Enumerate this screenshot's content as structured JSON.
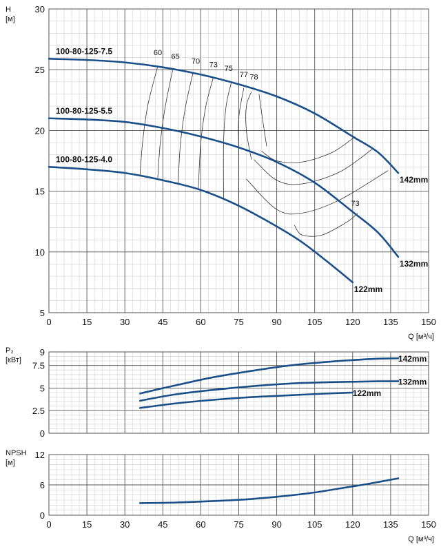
{
  "colors": {
    "curve": "#1b4f8a",
    "grid_major": "#555555",
    "grid_minor": "#d0d0d0",
    "iso": "#333333"
  },
  "chart_data": [
    {
      "id": "head",
      "type": "line",
      "xlabel": "Q [м³/ч]",
      "ylabel_line1": "H",
      "ylabel_line2": "[м]",
      "xlim": [
        0,
        150
      ],
      "ylim": [
        5,
        30
      ],
      "xticks": [
        "0",
        "15",
        "30",
        "45",
        "60",
        "75",
        "90",
        "105",
        "120",
        "135",
        "150"
      ],
      "yticks": [
        "5",
        "10",
        "15",
        "20",
        "25",
        "30"
      ],
      "x_tick_values": [
        0,
        15,
        30,
        45,
        60,
        75,
        90,
        105,
        120,
        135,
        150
      ],
      "y_tick_values": [
        5,
        10,
        15,
        20,
        25,
        30
      ],
      "grid": true,
      "series": [
        {
          "name": "100-80-125-7.5",
          "end_label": "142mm",
          "x": [
            0,
            15,
            30,
            45,
            60,
            75,
            90,
            105,
            120,
            130,
            138
          ],
          "y": [
            25.9,
            25.8,
            25.6,
            25.2,
            24.6,
            23.8,
            22.8,
            21.4,
            19.5,
            18.2,
            16.5
          ]
        },
        {
          "name": "100-80-125-5.5",
          "end_label": "132mm",
          "x": [
            0,
            15,
            30,
            45,
            60,
            75,
            90,
            105,
            120,
            130,
            138
          ],
          "y": [
            21.0,
            20.9,
            20.7,
            20.2,
            19.5,
            18.6,
            17.4,
            15.7,
            13.3,
            11.6,
            9.6
          ]
        },
        {
          "name": "100-80-125-4.0",
          "end_label": "122mm",
          "x": [
            0,
            15,
            30,
            45,
            60,
            75,
            90,
            100,
            110,
            120
          ],
          "y": [
            17.0,
            16.8,
            16.5,
            15.9,
            15.1,
            13.8,
            12.1,
            10.8,
            9.2,
            7.5
          ]
        }
      ],
      "efficiency_labels": [
        {
          "text": "60",
          "x": 43,
          "y": 26.2
        },
        {
          "text": "65",
          "x": 50,
          "y": 25.9
        },
        {
          "text": "70",
          "x": 58,
          "y": 25.5
        },
        {
          "text": "73",
          "x": 65,
          "y": 25.2
        },
        {
          "text": "75",
          "x": 71,
          "y": 24.9
        },
        {
          "text": "77",
          "x": 77,
          "y": 24.4
        },
        {
          "text": "78",
          "x": 81,
          "y": 24.2
        },
        {
          "text": "73",
          "x": 121,
          "y": 13.8
        }
      ],
      "iso_lines": [
        [
          [
            36,
            16.3
          ],
          [
            37,
            19
          ],
          [
            39,
            22
          ],
          [
            43,
            25.3
          ]
        ],
        [
          [
            43,
            16.1
          ],
          [
            44,
            19
          ],
          [
            46,
            22
          ],
          [
            49,
            25.1
          ]
        ],
        [
          [
            51,
            15.6
          ],
          [
            52,
            19
          ],
          [
            54,
            22
          ],
          [
            57,
            24.8
          ]
        ],
        [
          [
            59,
            15.1
          ],
          [
            60,
            19
          ],
          [
            62,
            22
          ],
          [
            65,
            24.4
          ]
        ],
        [
          [
            69,
            14.3
          ],
          [
            69,
            19
          ],
          [
            70,
            22
          ],
          [
            72,
            23.9
          ]
        ],
        [
          [
            75,
            13.8
          ],
          [
            75,
            18
          ],
          [
            75,
            21
          ],
          [
            77,
            23.5
          ]
        ],
        [
          [
            80,
            17.6
          ],
          [
            78,
            20
          ],
          [
            78,
            22
          ],
          [
            80,
            23.2
          ]
        ],
        [
          [
            84,
            18.3
          ],
          [
            90,
            17.5
          ],
          [
            100,
            17.4
          ],
          [
            112,
            18.2
          ],
          [
            121,
            19.5
          ]
        ],
        [
          [
            86,
            18.7
          ],
          [
            84,
            21.5
          ],
          [
            83,
            23
          ]
        ],
        [
          [
            81,
            17.6
          ],
          [
            90,
            15.9
          ],
          [
            100,
            15.6
          ],
          [
            115,
            16.6
          ],
          [
            128,
            18.5
          ]
        ],
        [
          [
            78,
            16
          ],
          [
            90,
            13.5
          ],
          [
            100,
            13.2
          ],
          [
            115,
            14.3
          ],
          [
            134,
            16.7
          ]
        ],
        [
          [
            97,
            12.2
          ],
          [
            100,
            11.4
          ],
          [
            108,
            11.4
          ],
          [
            118,
            12.5
          ],
          [
            122,
            13.2
          ]
        ]
      ]
    },
    {
      "id": "power",
      "type": "line",
      "xlabel": "",
      "ylabel_line1": "P₂",
      "ylabel_line2": "[кВт]",
      "xlim": [
        0,
        150
      ],
      "ylim": [
        0,
        9
      ],
      "xticks": [],
      "yticks": [
        "0",
        "2.5",
        "5",
        "7.5",
        "9"
      ],
      "x_tick_values": [
        0,
        15,
        30,
        45,
        60,
        75,
        90,
        105,
        120,
        135,
        150
      ],
      "y_tick_values": [
        0,
        2.5,
        5,
        7.5,
        9
      ],
      "grid": true,
      "series": [
        {
          "name": "",
          "end_label": "142mm",
          "x": [
            36,
            50,
            65,
            80,
            95,
            110,
            120,
            130,
            138
          ],
          "y": [
            4.4,
            5.3,
            6.2,
            6.9,
            7.5,
            7.9,
            8.1,
            8.25,
            8.3
          ]
        },
        {
          "name": "",
          "end_label": "132mm",
          "x": [
            36,
            50,
            65,
            80,
            95,
            110,
            120,
            130,
            138
          ],
          "y": [
            3.6,
            4.3,
            4.8,
            5.2,
            5.5,
            5.65,
            5.7,
            5.75,
            5.75
          ]
        },
        {
          "name": "",
          "end_label": "122mm",
          "x": [
            36,
            50,
            65,
            80,
            95,
            110,
            120
          ],
          "y": [
            2.8,
            3.3,
            3.7,
            4.0,
            4.2,
            4.4,
            4.5
          ]
        }
      ]
    },
    {
      "id": "npsh",
      "type": "line",
      "xlabel": "Q [м³/ч]",
      "ylabel_line1": "NPSH",
      "ylabel_line2": "[м]",
      "xlim": [
        0,
        150
      ],
      "ylim": [
        0,
        12
      ],
      "xticks": [
        "0",
        "15",
        "30",
        "45",
        "60",
        "75",
        "90",
        "105",
        "120",
        "135",
        "150"
      ],
      "yticks": [
        "0",
        "6",
        "12"
      ],
      "x_tick_values": [
        0,
        15,
        30,
        45,
        60,
        75,
        90,
        105,
        120,
        135,
        150
      ],
      "y_tick_values": [
        0,
        6,
        12
      ],
      "grid": true,
      "series": [
        {
          "name": "",
          "end_label": "",
          "x": [
            36,
            50,
            65,
            80,
            95,
            105,
            115,
            125,
            138
          ],
          "y": [
            2.4,
            2.5,
            2.8,
            3.2,
            3.9,
            4.5,
            5.3,
            6.1,
            7.3
          ]
        }
      ]
    }
  ]
}
